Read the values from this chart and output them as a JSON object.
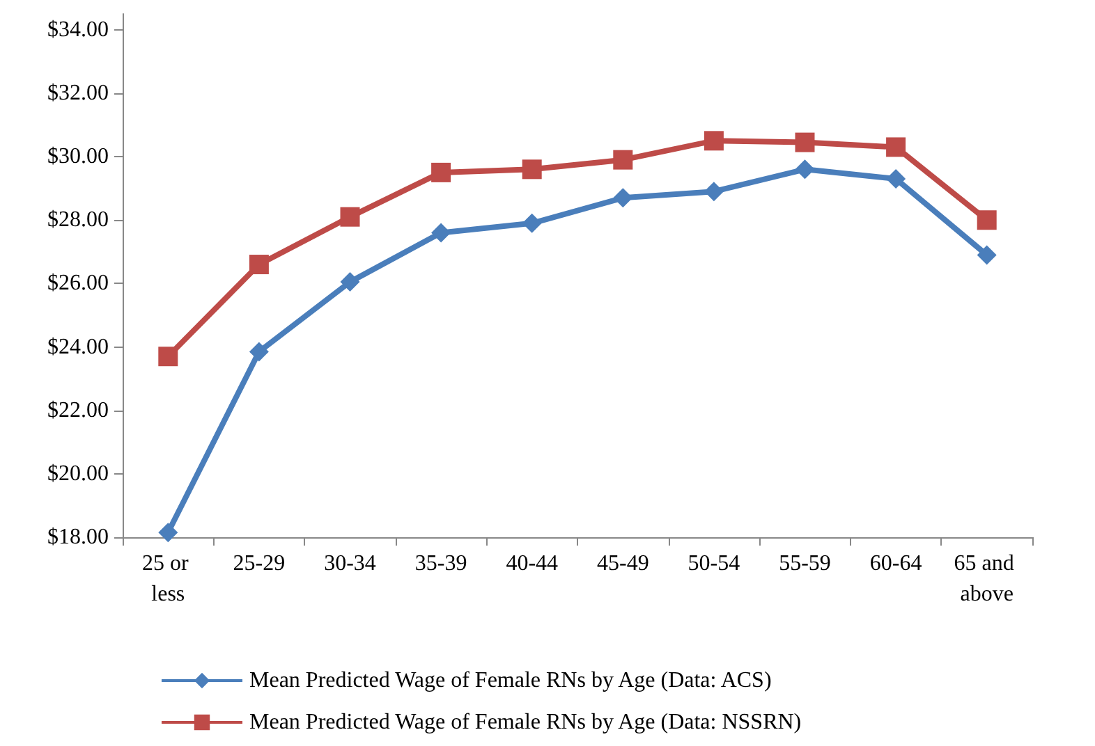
{
  "chart_data": {
    "type": "line",
    "categories": [
      "25 or less",
      "25-29",
      "30-34",
      "35-39",
      "40-44",
      "45-49",
      "50-54",
      "55-59",
      "60-64",
      "65 and above"
    ],
    "series": [
      {
        "name": "Mean Predicted Wage of Female RNs by Age (Data: ACS)",
        "color": "#4a7ebb",
        "marker": "diamond",
        "values": [
          18.15,
          23.85,
          26.05,
          27.6,
          27.9,
          28.7,
          28.9,
          29.6,
          29.3,
          26.9
        ]
      },
      {
        "name": "Mean Predicted Wage of Female RNs by Age (Data: NSSRN)",
        "color": "#be4b48",
        "marker": "square",
        "values": [
          23.7,
          26.6,
          28.1,
          29.5,
          29.6,
          29.9,
          30.5,
          30.45,
          30.3,
          28.0
        ]
      }
    ],
    "ylim": [
      18,
      34.5
    ],
    "yticks": [
      {
        "value": 18,
        "label": "$18.00"
      },
      {
        "value": 20,
        "label": "$20.00"
      },
      {
        "value": 22,
        "label": "$22.00"
      },
      {
        "value": 24,
        "label": "$24.00"
      },
      {
        "value": 26,
        "label": "$26.00"
      },
      {
        "value": 28,
        "label": "$28.00"
      },
      {
        "value": 30,
        "label": "$30.00"
      },
      {
        "value": 32,
        "label": "$32.00"
      },
      {
        "value": 34,
        "label": "$34.00"
      }
    ],
    "grid": false,
    "legend": "bottom",
    "line_style": "solid"
  }
}
